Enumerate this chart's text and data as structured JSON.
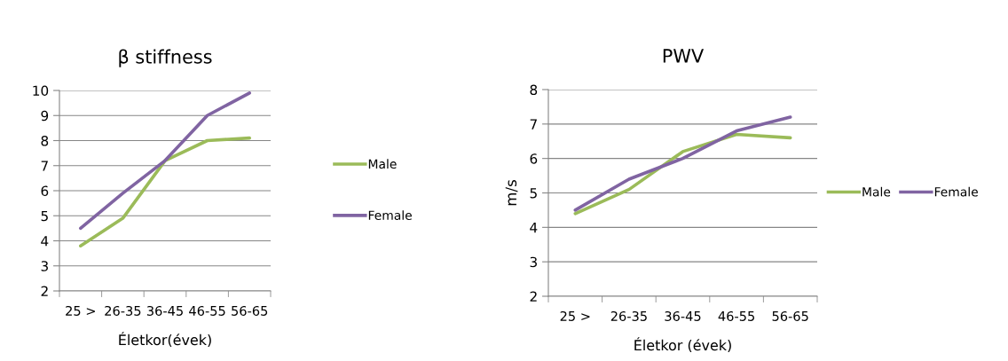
{
  "chart_data": [
    {
      "type": "line",
      "title": "β stiffness",
      "xlabel": "Életkor(évek)",
      "categories": [
        "25 >",
        "26-35",
        "36-45",
        "46-55",
        "56-65"
      ],
      "series": [
        {
          "name": "Male",
          "color": "#9bbb59",
          "values": [
            3.8,
            4.9,
            7.2,
            8.0,
            8.1
          ]
        },
        {
          "name": "Female",
          "color": "#8064a2",
          "values": [
            4.5,
            5.9,
            7.2,
            9.0,
            9.9
          ]
        }
      ],
      "ylim": [
        2,
        10
      ],
      "yticks": [
        2,
        3,
        4,
        5,
        6,
        7,
        8,
        9,
        10
      ],
      "grid": "y",
      "legend": "right",
      "marker": "none",
      "line_style": "solid"
    },
    {
      "type": "line",
      "title": "PWV",
      "xlabel": "Életkor (évek)",
      "ylabel": "m/s",
      "categories": [
        "25 >",
        "26-35",
        "36-45",
        "46-55",
        "56-65"
      ],
      "series": [
        {
          "name": "Male",
          "color": "#9bbb59",
          "values": [
            4.4,
            5.1,
            6.2,
            6.7,
            6.6
          ]
        },
        {
          "name": "Female",
          "color": "#8064a2",
          "values": [
            4.5,
            5.4,
            6.0,
            6.8,
            7.2
          ]
        }
      ],
      "ylim": [
        2,
        8
      ],
      "yticks": [
        2,
        3,
        4,
        5,
        6,
        7,
        8
      ],
      "grid": "y",
      "legend": "right",
      "marker": "none",
      "line_style": "solid"
    }
  ]
}
